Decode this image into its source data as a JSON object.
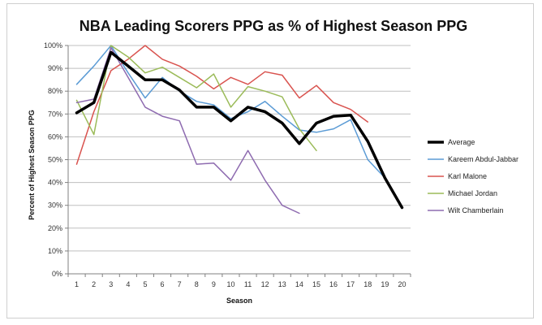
{
  "chart_data": {
    "type": "line",
    "title": "NBA Leading Scorers PPG as % of Highest Season PPG",
    "xlabel": "Season",
    "ylabel": "Percent of Highest Season PPG",
    "x": [
      1,
      2,
      3,
      4,
      5,
      6,
      7,
      8,
      9,
      10,
      11,
      12,
      13,
      14,
      15,
      16,
      17,
      18,
      19,
      20
    ],
    "x_tick_labels": [
      "1",
      "2",
      "3",
      "4",
      "5",
      "6",
      "7",
      "8",
      "9",
      "10",
      "11",
      "12",
      "13",
      "14",
      "15",
      "16",
      "17",
      "18",
      "19",
      "20"
    ],
    "ylim": [
      0,
      100
    ],
    "y_tick_labels": [
      "0%",
      "10%",
      "20%",
      "30%",
      "40%",
      "50%",
      "60%",
      "70%",
      "80%",
      "90%",
      "100%"
    ],
    "grid": "horizontal",
    "legend_position": "right",
    "series": [
      {
        "name": "Average",
        "color": "#000000",
        "width": 3.5,
        "values": [
          70.5,
          75,
          97,
          91,
          85,
          85,
          80.5,
          73,
          73,
          67,
          73,
          71,
          66,
          57,
          66,
          69,
          69.5,
          58,
          42,
          29
        ]
      },
      {
        "name": "Kareem Abdul-Jabbar",
        "color": "#5b9bd5",
        "width": 1.5,
        "values": [
          83,
          91,
          100,
          88,
          77,
          86,
          80,
          75.5,
          74,
          68,
          71,
          75.5,
          69,
          63,
          62,
          63.5,
          67.5,
          50,
          42,
          29
        ]
      },
      {
        "name": "Karl Malone",
        "color": "#d9534f",
        "width": 1.5,
        "values": [
          48,
          71,
          89,
          94,
          100,
          94,
          91,
          86.5,
          81,
          86,
          83,
          88.5,
          87,
          77,
          82.5,
          75,
          72,
          66.5,
          null,
          null
        ]
      },
      {
        "name": "Michael Jordan",
        "color": "#9bbb59",
        "width": 1.5,
        "values": [
          76,
          61,
          100,
          95,
          88,
          90.5,
          86,
          81.5,
          87.5,
          73,
          82,
          80,
          77.5,
          63.5,
          54,
          null,
          null,
          null,
          null,
          null
        ]
      },
      {
        "name": "Wilt Chamberlain",
        "color": "#8e6bb0",
        "width": 1.5,
        "values": [
          75,
          76.5,
          99,
          86,
          73,
          69,
          67,
          48,
          48.5,
          41,
          54,
          41,
          30,
          26.5,
          null,
          null,
          null,
          null,
          null,
          null
        ]
      }
    ]
  }
}
